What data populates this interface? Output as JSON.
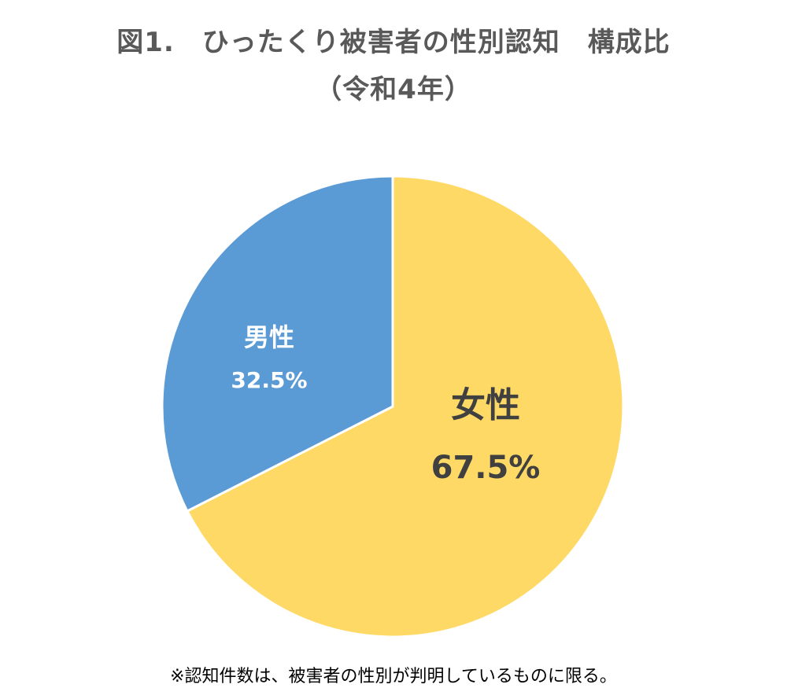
{
  "title": {
    "line1": "図1.　ひったくり被害者の性別認知　構成比",
    "line2": "（令和4年）"
  },
  "footnote": "※認知件数は、被害者の性別が判明しているものに限る。",
  "colors": {
    "male": "#5B9BD5",
    "female": "#FFD966",
    "male_label": "#FFFFFF",
    "female_label": "#404040",
    "title": "#595959"
  },
  "labels": {
    "male_name": "男性",
    "male_pct": "32.5%",
    "female_name": "女性",
    "female_pct": "67.5%"
  },
  "chart_data": {
    "type": "pie",
    "title": "図1.　ひったくり被害者の性別認知　構成比（令和4年）",
    "categories": [
      "女性",
      "男性"
    ],
    "values": [
      67.5,
      32.5
    ],
    "unit": "%",
    "start_angle": "12 o'clock, clockwise",
    "colors": [
      "#FFD966",
      "#5B9BD5"
    ],
    "data_labels": [
      "女性 67.5%",
      "男性 32.5%"
    ],
    "legend": "none",
    "note": "※認知件数は、被害者の性別が判明しているものに限る。"
  }
}
